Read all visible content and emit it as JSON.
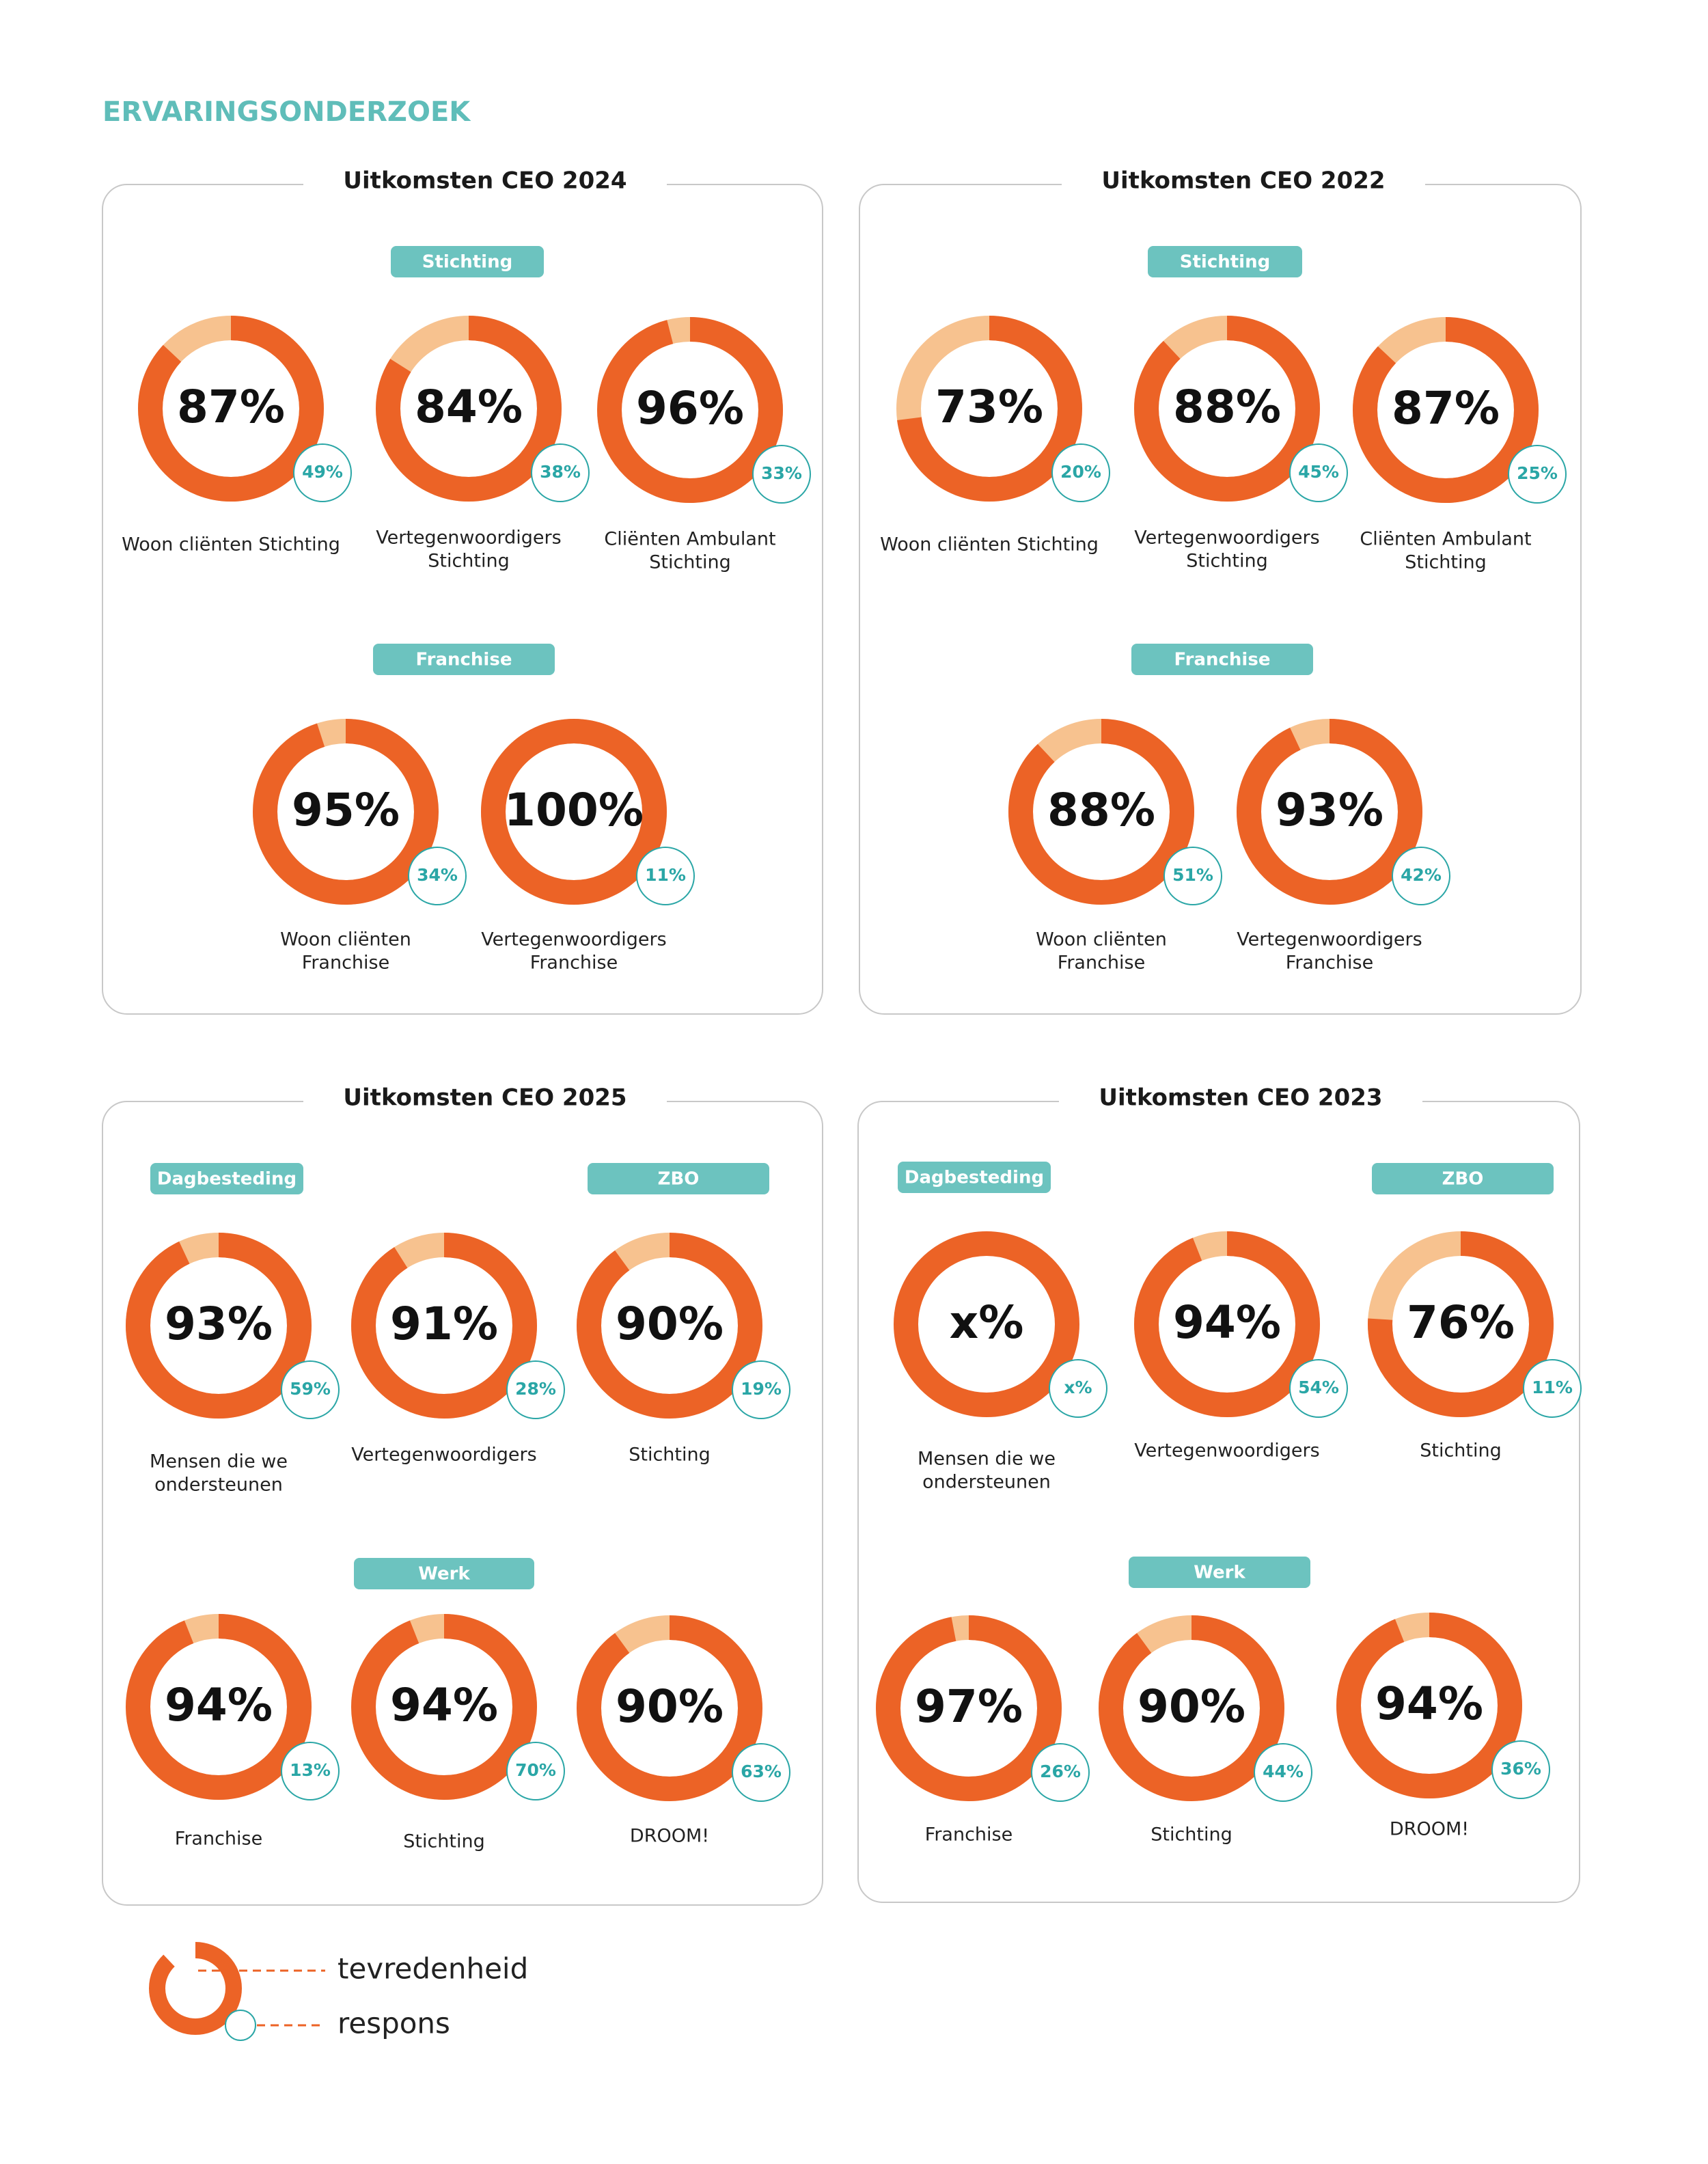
{
  "header": {
    "title": "ERVARINGSONDERZOEK"
  },
  "panels": [
    {
      "title": "Uitkomsten CEO 2024",
      "groups": [
        {
          "label": "Stichting",
          "items": [
            {
              "satisfaction": 87,
              "satisfaction_label": "87%",
              "response": "49%",
              "label": [
                "Woon cliënten Stichting"
              ]
            },
            {
              "satisfaction": 84,
              "satisfaction_label": "84%",
              "response": "38%",
              "label": [
                "Vertegenwoordigers",
                "Stichting"
              ]
            },
            {
              "satisfaction": 96,
              "satisfaction_label": "96%",
              "response": "33%",
              "label": [
                "Cliënten Ambulant",
                "Stichting"
              ]
            }
          ]
        },
        {
          "label": "Franchise",
          "items": [
            {
              "satisfaction": 95,
              "satisfaction_label": "95%",
              "response": "34%",
              "label": [
                "Woon cliënten",
                "Franchise"
              ]
            },
            {
              "satisfaction": 100,
              "satisfaction_label": "100%",
              "response": "11%",
              "label": [
                "Vertegenwoordigers",
                "Franchise"
              ]
            }
          ]
        }
      ]
    },
    {
      "title": "Uitkomsten CEO 2022",
      "groups": [
        {
          "label": "Stichting",
          "items": [
            {
              "satisfaction": 73,
              "satisfaction_label": "73%",
              "response": "20%",
              "label": [
                "Woon cliënten Stichting"
              ]
            },
            {
              "satisfaction": 88,
              "satisfaction_label": "88%",
              "response": "45%",
              "label": [
                "Vertegenwoordigers",
                "Stichting"
              ]
            },
            {
              "satisfaction": 87,
              "satisfaction_label": "87%",
              "response": "25%",
              "label": [
                "Cliënten Ambulant",
                "Stichting"
              ]
            }
          ]
        },
        {
          "label": "Franchise",
          "items": [
            {
              "satisfaction": 88,
              "satisfaction_label": "88%",
              "response": "51%",
              "label": [
                "Woon cliënten",
                "Franchise"
              ]
            },
            {
              "satisfaction": 93,
              "satisfaction_label": "93%",
              "response": "42%",
              "label": [
                "Vertegenwoordigers",
                "Franchise"
              ]
            }
          ]
        }
      ]
    },
    {
      "title": "Uitkomsten CEO 2025",
      "groups": [
        {
          "label": "Dagbesteding",
          "items": [
            {
              "satisfaction": 93,
              "satisfaction_label": "93%",
              "response": "59%",
              "label": [
                "Mensen die we",
                "ondersteunen"
              ]
            },
            {
              "satisfaction": 91,
              "satisfaction_label": "91%",
              "response": "28%",
              "label": [
                "Vertegenwoordigers"
              ]
            }
          ]
        },
        {
          "label": "ZBO",
          "items": [
            {
              "satisfaction": 90,
              "satisfaction_label": "90%",
              "response": "19%",
              "label": [
                "Stichting"
              ]
            }
          ]
        },
        {
          "label": "Werk",
          "items": [
            {
              "satisfaction": 94,
              "satisfaction_label": "94%",
              "response": "13%",
              "label": [
                "Franchise"
              ]
            },
            {
              "satisfaction": 94,
              "satisfaction_label": "94%",
              "response": "70%",
              "label": [
                "Stichting"
              ]
            },
            {
              "satisfaction": 90,
              "satisfaction_label": "90%",
              "response": "63%",
              "label": [
                "DROOM!"
              ]
            }
          ]
        }
      ]
    },
    {
      "title": "Uitkomsten CEO 2023",
      "groups": [
        {
          "label": "Dagbesteding",
          "items": [
            {
              "satisfaction": null,
              "satisfaction_label": "x%",
              "response": "x%",
              "label": [
                "Mensen die we",
                "ondersteunen"
              ]
            },
            {
              "satisfaction": 94,
              "satisfaction_label": "94%",
              "response": "54%",
              "label": [
                "Vertegenwoordigers"
              ]
            }
          ]
        },
        {
          "label": "ZBO",
          "items": [
            {
              "satisfaction": 76,
              "satisfaction_label": "76%",
              "response": "11%",
              "label": [
                "Stichting"
              ]
            }
          ]
        },
        {
          "label": "Werk",
          "items": [
            {
              "satisfaction": 97,
              "satisfaction_label": "97%",
              "response": "26%",
              "label": [
                "Franchise"
              ]
            },
            {
              "satisfaction": 90,
              "satisfaction_label": "90%",
              "response": "44%",
              "label": [
                "Stichting"
              ]
            },
            {
              "satisfaction": 94,
              "satisfaction_label": "94%",
              "response": "36%",
              "label": [
                "DROOM!"
              ]
            }
          ]
        }
      ]
    }
  ],
  "legend": {
    "satisfaction": "tevredenheid",
    "response": "respons"
  }
}
